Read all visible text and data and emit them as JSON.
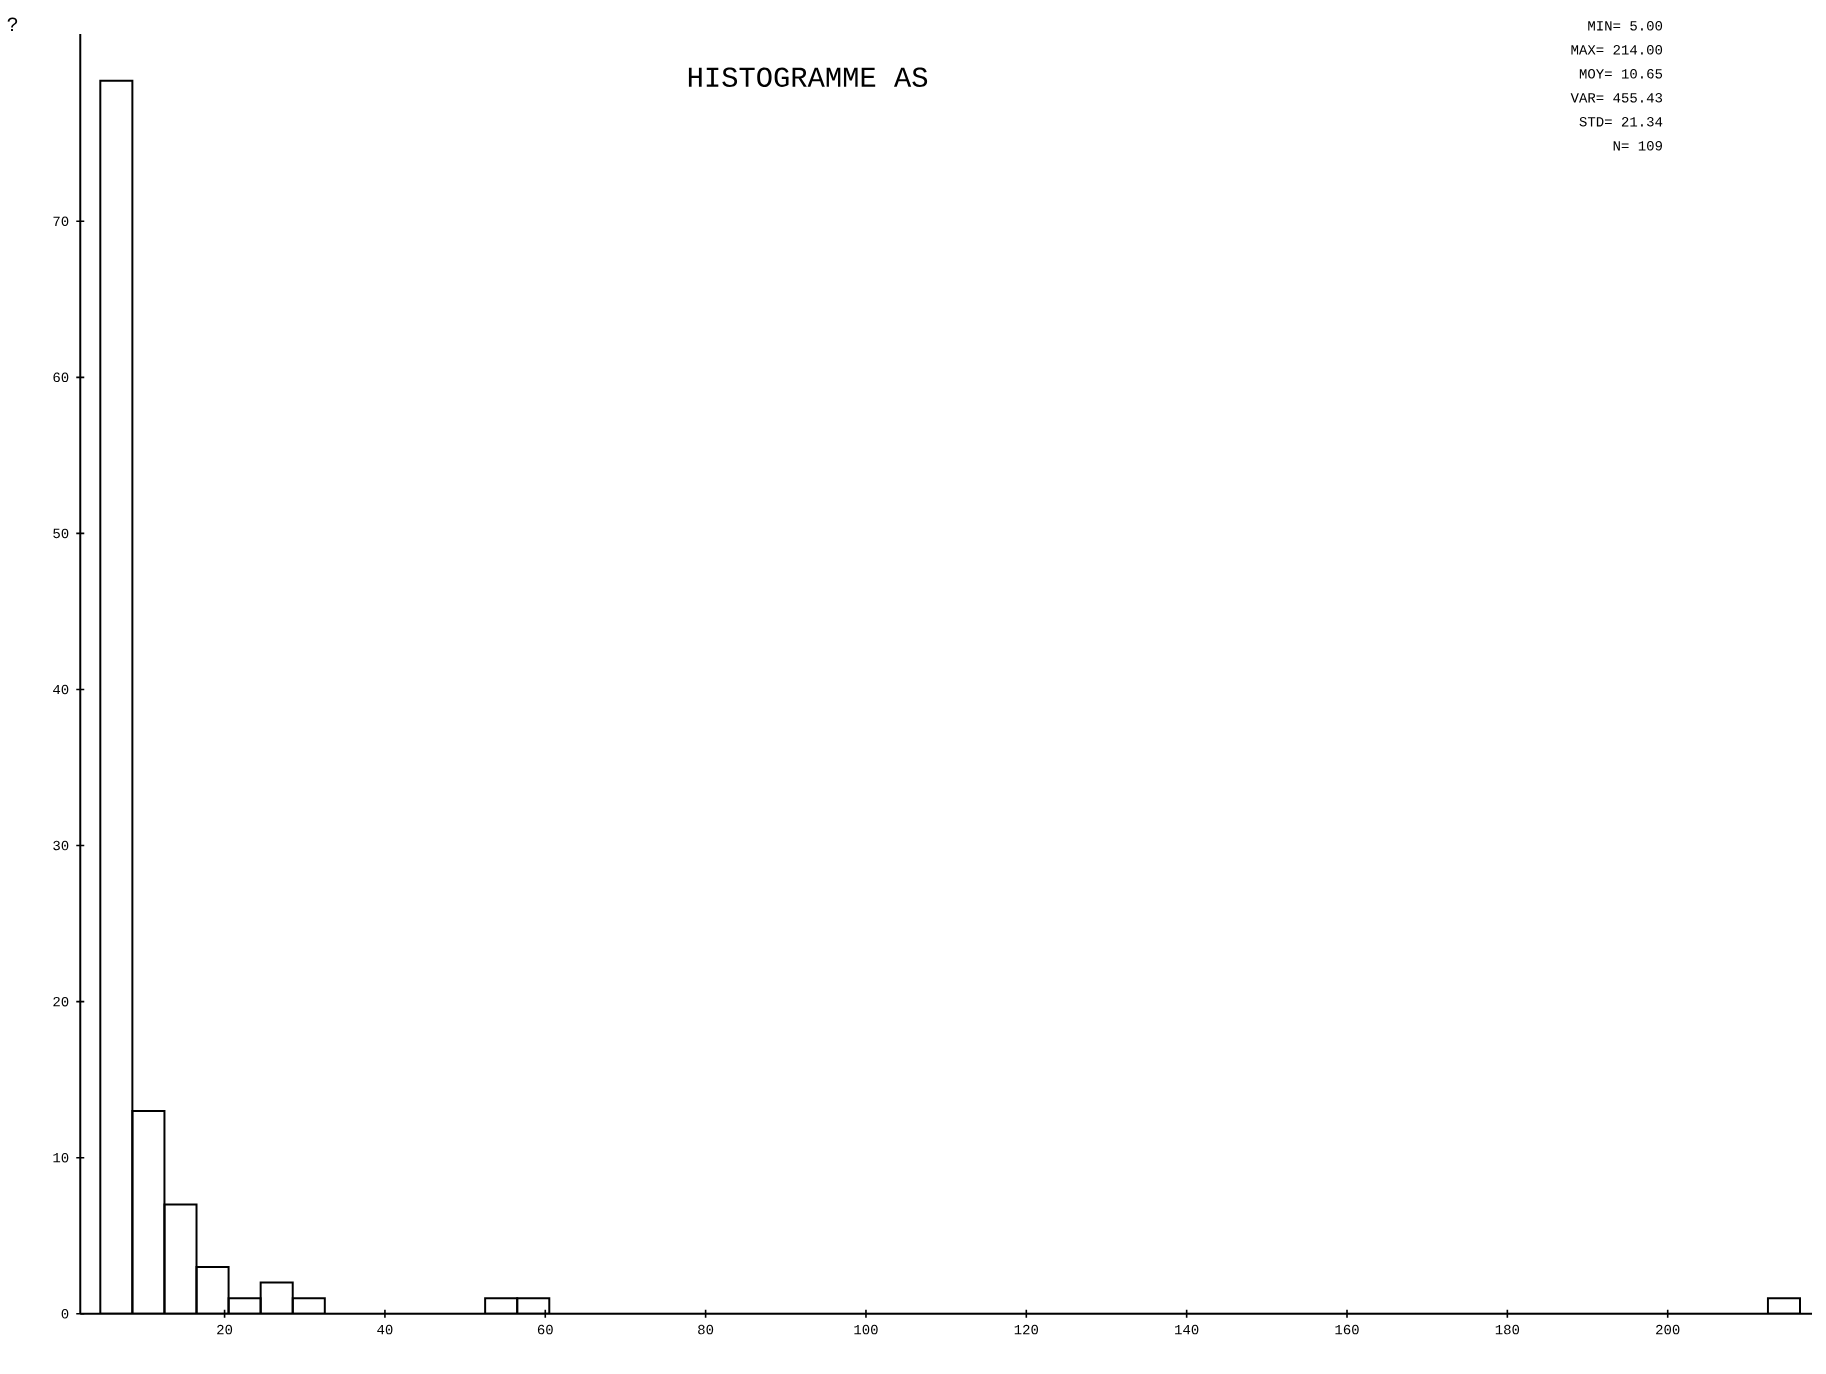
{
  "chart_data": {
    "type": "histogram",
    "title": "HISTOGRAMME AS",
    "ylabel": "?",
    "bins": [
      4.5,
      8.5,
      12.5,
      16.5,
      20.5,
      24.5,
      28.5,
      32.5,
      36.5,
      40.5,
      44.5,
      48.5,
      52.5,
      56.5,
      60.5,
      64.5,
      68.5,
      72.5,
      76.5,
      80.5,
      84.5,
      88.5,
      92.5,
      96.5,
      100.5,
      104.5,
      108.5,
      112.5,
      116.5,
      120.5,
      124.5,
      128.5,
      132.5,
      136.5,
      140.5,
      144.5,
      148.5,
      152.5,
      156.5,
      160.5,
      164.5,
      168.5,
      172.5,
      176.5,
      180.5,
      184.5,
      188.5,
      192.5,
      196.5,
      200.5,
      204.5,
      208.5,
      212.5,
      216.5
    ],
    "values": [
      79,
      13,
      7,
      3,
      1,
      2,
      1,
      0,
      0,
      0,
      0,
      0,
      1,
      1,
      0,
      0,
      0,
      0,
      0,
      0,
      0,
      0,
      0,
      0,
      0,
      0,
      0,
      0,
      0,
      0,
      0,
      0,
      0,
      0,
      0,
      0,
      0,
      0,
      0,
      0,
      0,
      0,
      0,
      0,
      0,
      0,
      0,
      0,
      0,
      0,
      0,
      0,
      1
    ],
    "color": "#000000",
    "xlim": [
      2,
      218
    ],
    "ylim": [
      0,
      82
    ],
    "xticks": [
      20,
      40,
      60,
      80,
      100,
      120,
      140,
      160,
      180,
      200
    ],
    "yticks": [
      0,
      10,
      20,
      30,
      40,
      50,
      60,
      70
    ],
    "grid": false,
    "annotations": [
      "MIN= 5.00",
      "MAX= 214.00",
      "MOY= 10.65",
      "VAR= 455.43",
      "STD= 21.34",
      "N= 109"
    ]
  }
}
